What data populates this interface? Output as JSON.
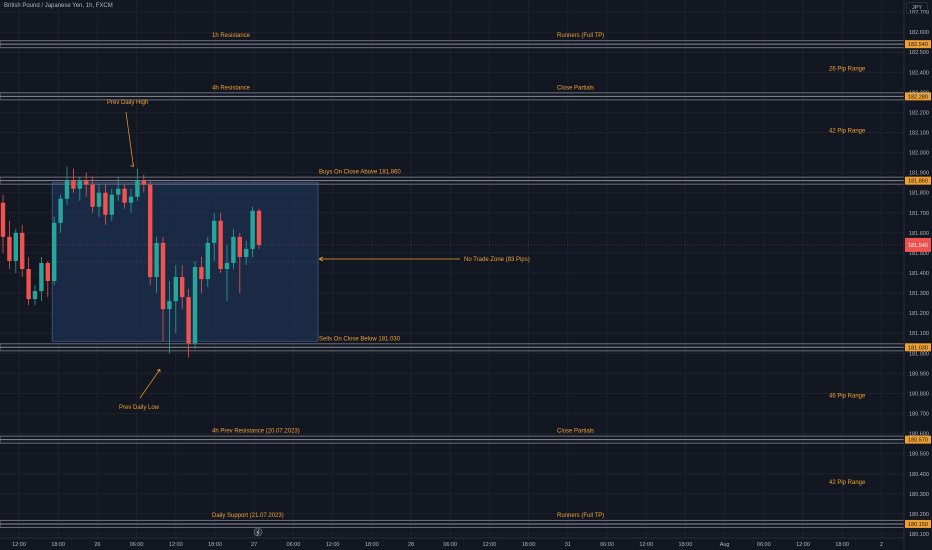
{
  "title": "British Pound / Japanese Yen, 1h, FXCM",
  "currency": "JPY",
  "colors": {
    "background": "#131722",
    "grid": "#1e222d",
    "up": "#26a69a",
    "down": "#ef5350",
    "annotation": "#f0a030",
    "zone_fill": "#1c2e4a",
    "zone_border": "#3a5a8a",
    "level_band": "#6b6e78",
    "axis_text": "#b2b5be",
    "level_tag": "#f0a030",
    "price_tag": "#ef5350"
  },
  "chart_data": {
    "type": "candlestick",
    "symbol": "GBPJPY",
    "timeframe": "1h",
    "ylim": [
      180.08,
      182.76
    ],
    "y_ticks": [
      "182.700",
      "182.600",
      "182.500",
      "182.400",
      "182.300",
      "182.200",
      "182.100",
      "182.000",
      "181.900",
      "181.800",
      "181.700",
      "181.600",
      "181.500",
      "181.400",
      "181.300",
      "181.200",
      "181.100",
      "181.000",
      "180.900",
      "180.800",
      "180.700",
      "180.600",
      "180.500",
      "180.400",
      "180.300",
      "180.200",
      "180.100"
    ],
    "x_ticks": [
      "12:00",
      "18:00",
      "26",
      "06:00",
      "12:00",
      "18:00",
      "27",
      "06:00",
      "12:00",
      "18:00",
      "28",
      "06:00",
      "12:00",
      "18:00",
      "31",
      "06:00",
      "12:00",
      "18:00",
      "Aug",
      "06:00",
      "12:00",
      "18:00",
      "2"
    ],
    "candles": [
      {
        "o": 181.75,
        "h": 181.79,
        "l": 181.5,
        "c": 181.58
      },
      {
        "o": 181.58,
        "h": 181.66,
        "l": 181.42,
        "c": 181.46
      },
      {
        "o": 181.46,
        "h": 181.62,
        "l": 181.4,
        "c": 181.6
      },
      {
        "o": 181.6,
        "h": 181.64,
        "l": 181.38,
        "c": 181.42
      },
      {
        "o": 181.42,
        "h": 181.48,
        "l": 181.24,
        "c": 181.27
      },
      {
        "o": 181.27,
        "h": 181.34,
        "l": 181.24,
        "c": 181.31
      },
      {
        "o": 181.31,
        "h": 181.48,
        "l": 181.26,
        "c": 181.45
      },
      {
        "o": 181.45,
        "h": 181.46,
        "l": 181.28,
        "c": 181.36
      },
      {
        "o": 181.36,
        "h": 181.68,
        "l": 181.34,
        "c": 181.65
      },
      {
        "o": 181.65,
        "h": 181.79,
        "l": 181.6,
        "c": 181.77
      },
      {
        "o": 181.77,
        "h": 181.93,
        "l": 181.74,
        "c": 181.86
      },
      {
        "o": 181.86,
        "h": 181.92,
        "l": 181.8,
        "c": 181.82
      },
      {
        "o": 181.82,
        "h": 181.88,
        "l": 181.76,
        "c": 181.86
      },
      {
        "o": 181.86,
        "h": 181.9,
        "l": 181.78,
        "c": 181.84
      },
      {
        "o": 181.84,
        "h": 181.88,
        "l": 181.7,
        "c": 181.73
      },
      {
        "o": 181.73,
        "h": 181.84,
        "l": 181.68,
        "c": 181.8
      },
      {
        "o": 181.8,
        "h": 181.84,
        "l": 181.64,
        "c": 181.69
      },
      {
        "o": 181.69,
        "h": 181.82,
        "l": 181.66,
        "c": 181.79
      },
      {
        "o": 181.79,
        "h": 181.88,
        "l": 181.76,
        "c": 181.82
      },
      {
        "o": 181.82,
        "h": 181.84,
        "l": 181.72,
        "c": 181.75
      },
      {
        "o": 181.75,
        "h": 181.82,
        "l": 181.7,
        "c": 181.78
      },
      {
        "o": 181.78,
        "h": 181.92,
        "l": 181.76,
        "c": 181.86
      },
      {
        "o": 181.86,
        "h": 181.89,
        "l": 181.8,
        "c": 181.84
      },
      {
        "o": 181.84,
        "h": 181.86,
        "l": 181.34,
        "c": 181.38
      },
      {
        "o": 181.38,
        "h": 181.58,
        "l": 181.3,
        "c": 181.55
      },
      {
        "o": 181.55,
        "h": 181.58,
        "l": 181.06,
        "c": 181.22
      },
      {
        "o": 181.22,
        "h": 181.36,
        "l": 181.0,
        "c": 181.26
      },
      {
        "o": 181.26,
        "h": 181.44,
        "l": 181.1,
        "c": 181.38
      },
      {
        "o": 181.38,
        "h": 181.44,
        "l": 181.22,
        "c": 181.28
      },
      {
        "o": 181.28,
        "h": 181.32,
        "l": 180.98,
        "c": 181.05
      },
      {
        "o": 181.05,
        "h": 181.46,
        "l": 181.02,
        "c": 181.43
      },
      {
        "o": 181.43,
        "h": 181.48,
        "l": 181.3,
        "c": 181.37
      },
      {
        "o": 181.37,
        "h": 181.58,
        "l": 181.33,
        "c": 181.55
      },
      {
        "o": 181.55,
        "h": 181.7,
        "l": 181.46,
        "c": 181.66
      },
      {
        "o": 181.66,
        "h": 181.7,
        "l": 181.4,
        "c": 181.42
      },
      {
        "o": 181.42,
        "h": 181.54,
        "l": 181.26,
        "c": 181.45
      },
      {
        "o": 181.45,
        "h": 181.62,
        "l": 181.42,
        "c": 181.58
      },
      {
        "o": 181.58,
        "h": 181.6,
        "l": 181.3,
        "c": 181.48
      },
      {
        "o": 181.48,
        "h": 181.56,
        "l": 181.44,
        "c": 181.52
      },
      {
        "o": 181.52,
        "h": 181.73,
        "l": 181.48,
        "c": 181.71
      },
      {
        "o": 181.71,
        "h": 181.72,
        "l": 181.52,
        "c": 181.54
      }
    ],
    "levels": [
      {
        "price": 182.54,
        "tag": "182.540",
        "left_label": "1h Resistance",
        "right_label": "Runners (Full TP)"
      },
      {
        "price": 182.28,
        "tag": "182.280",
        "left_label": "4h Resistance",
        "right_label": "Close Partials"
      },
      {
        "price": 181.86,
        "tag": "181.860",
        "left_label": "",
        "right_label": "Buys On Close Above 181.860"
      },
      {
        "price": 181.03,
        "tag": "181.030",
        "left_label": "",
        "right_label": "Sells On Close Below 181.030"
      },
      {
        "price": 180.57,
        "tag": "180.570",
        "left_label": "4h Prev Resistance (20.07.2023)",
        "right_label": "Close Partials"
      },
      {
        "price": 180.15,
        "tag": "180.150",
        "left_label": "Daily Support (21.07.2023)",
        "right_label": "Runners (Full TP)"
      }
    ],
    "range_labels": [
      {
        "price": 182.42,
        "text": "26 Pip Range"
      },
      {
        "price": 182.11,
        "text": "42 Pip Range"
      },
      {
        "price": 180.79,
        "text": "46 Pip Range"
      },
      {
        "price": 180.36,
        "text": "42 Pip Range"
      }
    ],
    "no_trade_zone": {
      "from": 181.06,
      "to": 181.85,
      "label": "No Trade Zone (83 Pips)"
    },
    "notes": {
      "prev_daily_high": "Prev Daily High",
      "prev_daily_low": "Prev Daily Low"
    },
    "last_price": 181.54
  }
}
